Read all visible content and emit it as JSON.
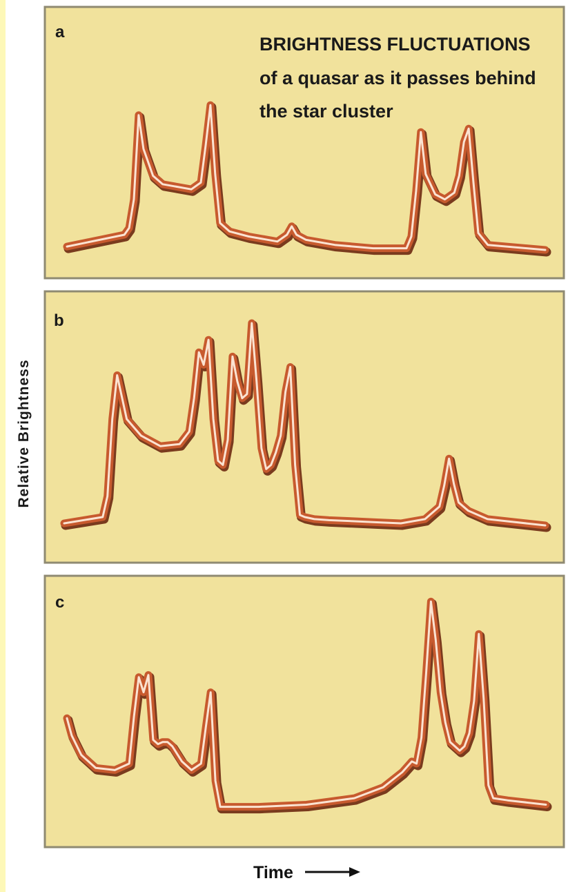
{
  "colors": {
    "panel_fill": "#f1e29c",
    "panel_border": "#8f8a72",
    "curve_outer": "#c75a2e",
    "curve_shadow": "#7a3b1e",
    "curve_highlight": "#fbe3d2",
    "side_strip": "#fdf8b8"
  },
  "figure": {
    "title_lines": [
      "BRIGHTNESS FLUCTUATIONS",
      "of a quasar as it passes behind",
      "the star cluster"
    ],
    "ylabel": "Relative Brightness",
    "xlabel": "Time"
  },
  "chart_data": [
    {
      "type": "line",
      "panel": "a",
      "xlim": [
        0,
        100
      ],
      "ylim": [
        0,
        10
      ],
      "series": [
        {
          "x": [
            0,
            12,
            13,
            14,
            15,
            16,
            18,
            20,
            26,
            28,
            29,
            30,
            31,
            32,
            34,
            38,
            44,
            46,
            47,
            48,
            50,
            56,
            64,
            71,
            72,
            73,
            74,
            75,
            77,
            79,
            81,
            82,
            83,
            84,
            85,
            86,
            88,
            100
          ],
          "y": [
            0.2,
            0.9,
            1.3,
            3.0,
            8.0,
            6.0,
            4.4,
            3.9,
            3.6,
            4.0,
            6.2,
            8.6,
            4.5,
            1.6,
            1.1,
            0.8,
            0.5,
            0.9,
            1.4,
            0.9,
            0.6,
            0.3,
            0.1,
            0.1,
            0.8,
            3.5,
            7.0,
            4.5,
            3.3,
            3.0,
            3.4,
            4.4,
            6.4,
            7.2,
            4.0,
            1.0,
            0.3,
            0.0
          ]
        }
      ]
    },
    {
      "type": "line",
      "panel": "b",
      "xlim": [
        0,
        100
      ],
      "ylim": [
        0,
        10
      ],
      "series": [
        {
          "x": [
            0,
            8,
            9,
            10,
            11,
            13,
            16,
            20,
            24,
            26,
            27,
            28,
            29,
            30,
            31,
            32,
            33,
            34,
            35,
            36,
            37,
            38,
            39,
            40,
            41,
            42,
            43,
            44,
            45,
            46,
            47,
            48,
            49,
            50,
            51,
            52,
            55,
            60,
            65,
            70,
            75,
            78,
            79,
            80,
            81,
            82,
            84,
            88,
            100
          ],
          "y": [
            0.2,
            0.5,
            1.5,
            5.2,
            7.3,
            5.2,
            4.4,
            3.9,
            4.0,
            4.6,
            6.2,
            8.4,
            7.8,
            9.0,
            5.2,
            3.2,
            3.0,
            4.2,
            8.2,
            7.0,
            6.2,
            6.4,
            9.8,
            7.0,
            3.8,
            2.8,
            3.0,
            3.6,
            4.4,
            6.5,
            7.7,
            3.0,
            0.6,
            0.5,
            0.45,
            0.4,
            0.35,
            0.3,
            0.25,
            0.2,
            0.4,
            1.0,
            2.0,
            3.3,
            2.1,
            1.2,
            0.8,
            0.4,
            0.1
          ]
        }
      ]
    },
    {
      "type": "line",
      "panel": "c",
      "xlim": [
        0,
        100
      ],
      "ylim": [
        0,
        10
      ],
      "series": [
        {
          "x": [
            0,
            1,
            3,
            6,
            10,
            13,
            14,
            15,
            16,
            17,
            18,
            19,
            20,
            21,
            22,
            24,
            26,
            28,
            29,
            30,
            31,
            32,
            33,
            36,
            40,
            50,
            60,
            66,
            70,
            72,
            73,
            74,
            75,
            76,
            77,
            78,
            79,
            80,
            82,
            83,
            84,
            85,
            86,
            87,
            88,
            89,
            92,
            100
          ],
          "y": [
            4.4,
            3.6,
            2.7,
            2.1,
            2.0,
            2.3,
            4.5,
            6.3,
            5.6,
            6.4,
            3.4,
            3.2,
            3.3,
            3.3,
            3.1,
            2.4,
            2.0,
            2.3,
            4.0,
            5.6,
            1.5,
            0.3,
            0.3,
            0.3,
            0.3,
            0.4,
            0.7,
            1.2,
            1.9,
            2.4,
            2.3,
            3.5,
            6.5,
            9.8,
            8.0,
            5.6,
            4.2,
            3.3,
            2.9,
            3.1,
            3.7,
            5.2,
            8.3,
            5.3,
            1.3,
            0.7,
            0.6,
            0.4
          ]
        }
      ]
    }
  ]
}
